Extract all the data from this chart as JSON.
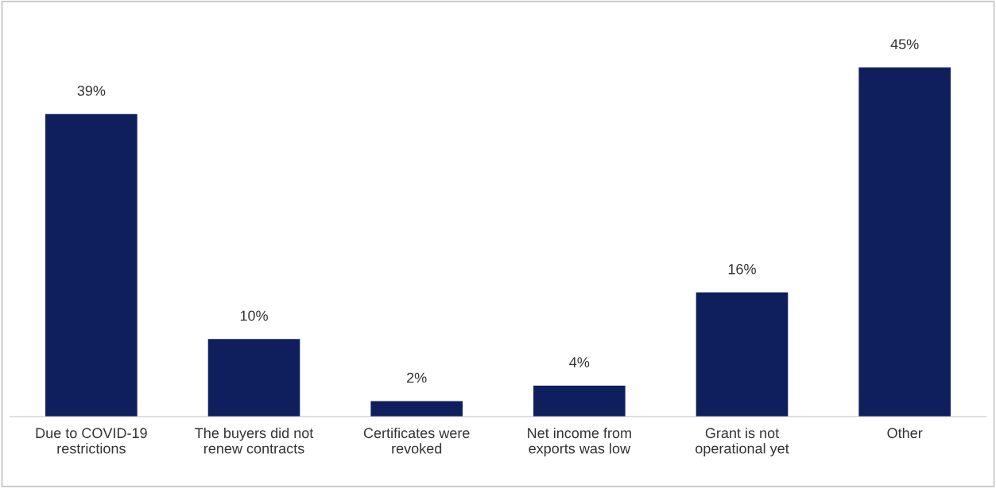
{
  "chart_data": {
    "type": "bar",
    "categories": [
      "Due to COVID-19\nrestrictions",
      "The buyers did not\nrenew contracts",
      "Certificates were\nrevoked",
      "Net income from\nexports was low",
      "Grant is not\noperational yet",
      "Other"
    ],
    "values": [
      39,
      10,
      2,
      4,
      16,
      45
    ],
    "value_labels": [
      "39%",
      "10%",
      "2%",
      "4%",
      "16%",
      "45%"
    ],
    "color": "#0f1f5e",
    "tick_labels": "x",
    "grid": false,
    "legend": false
  }
}
